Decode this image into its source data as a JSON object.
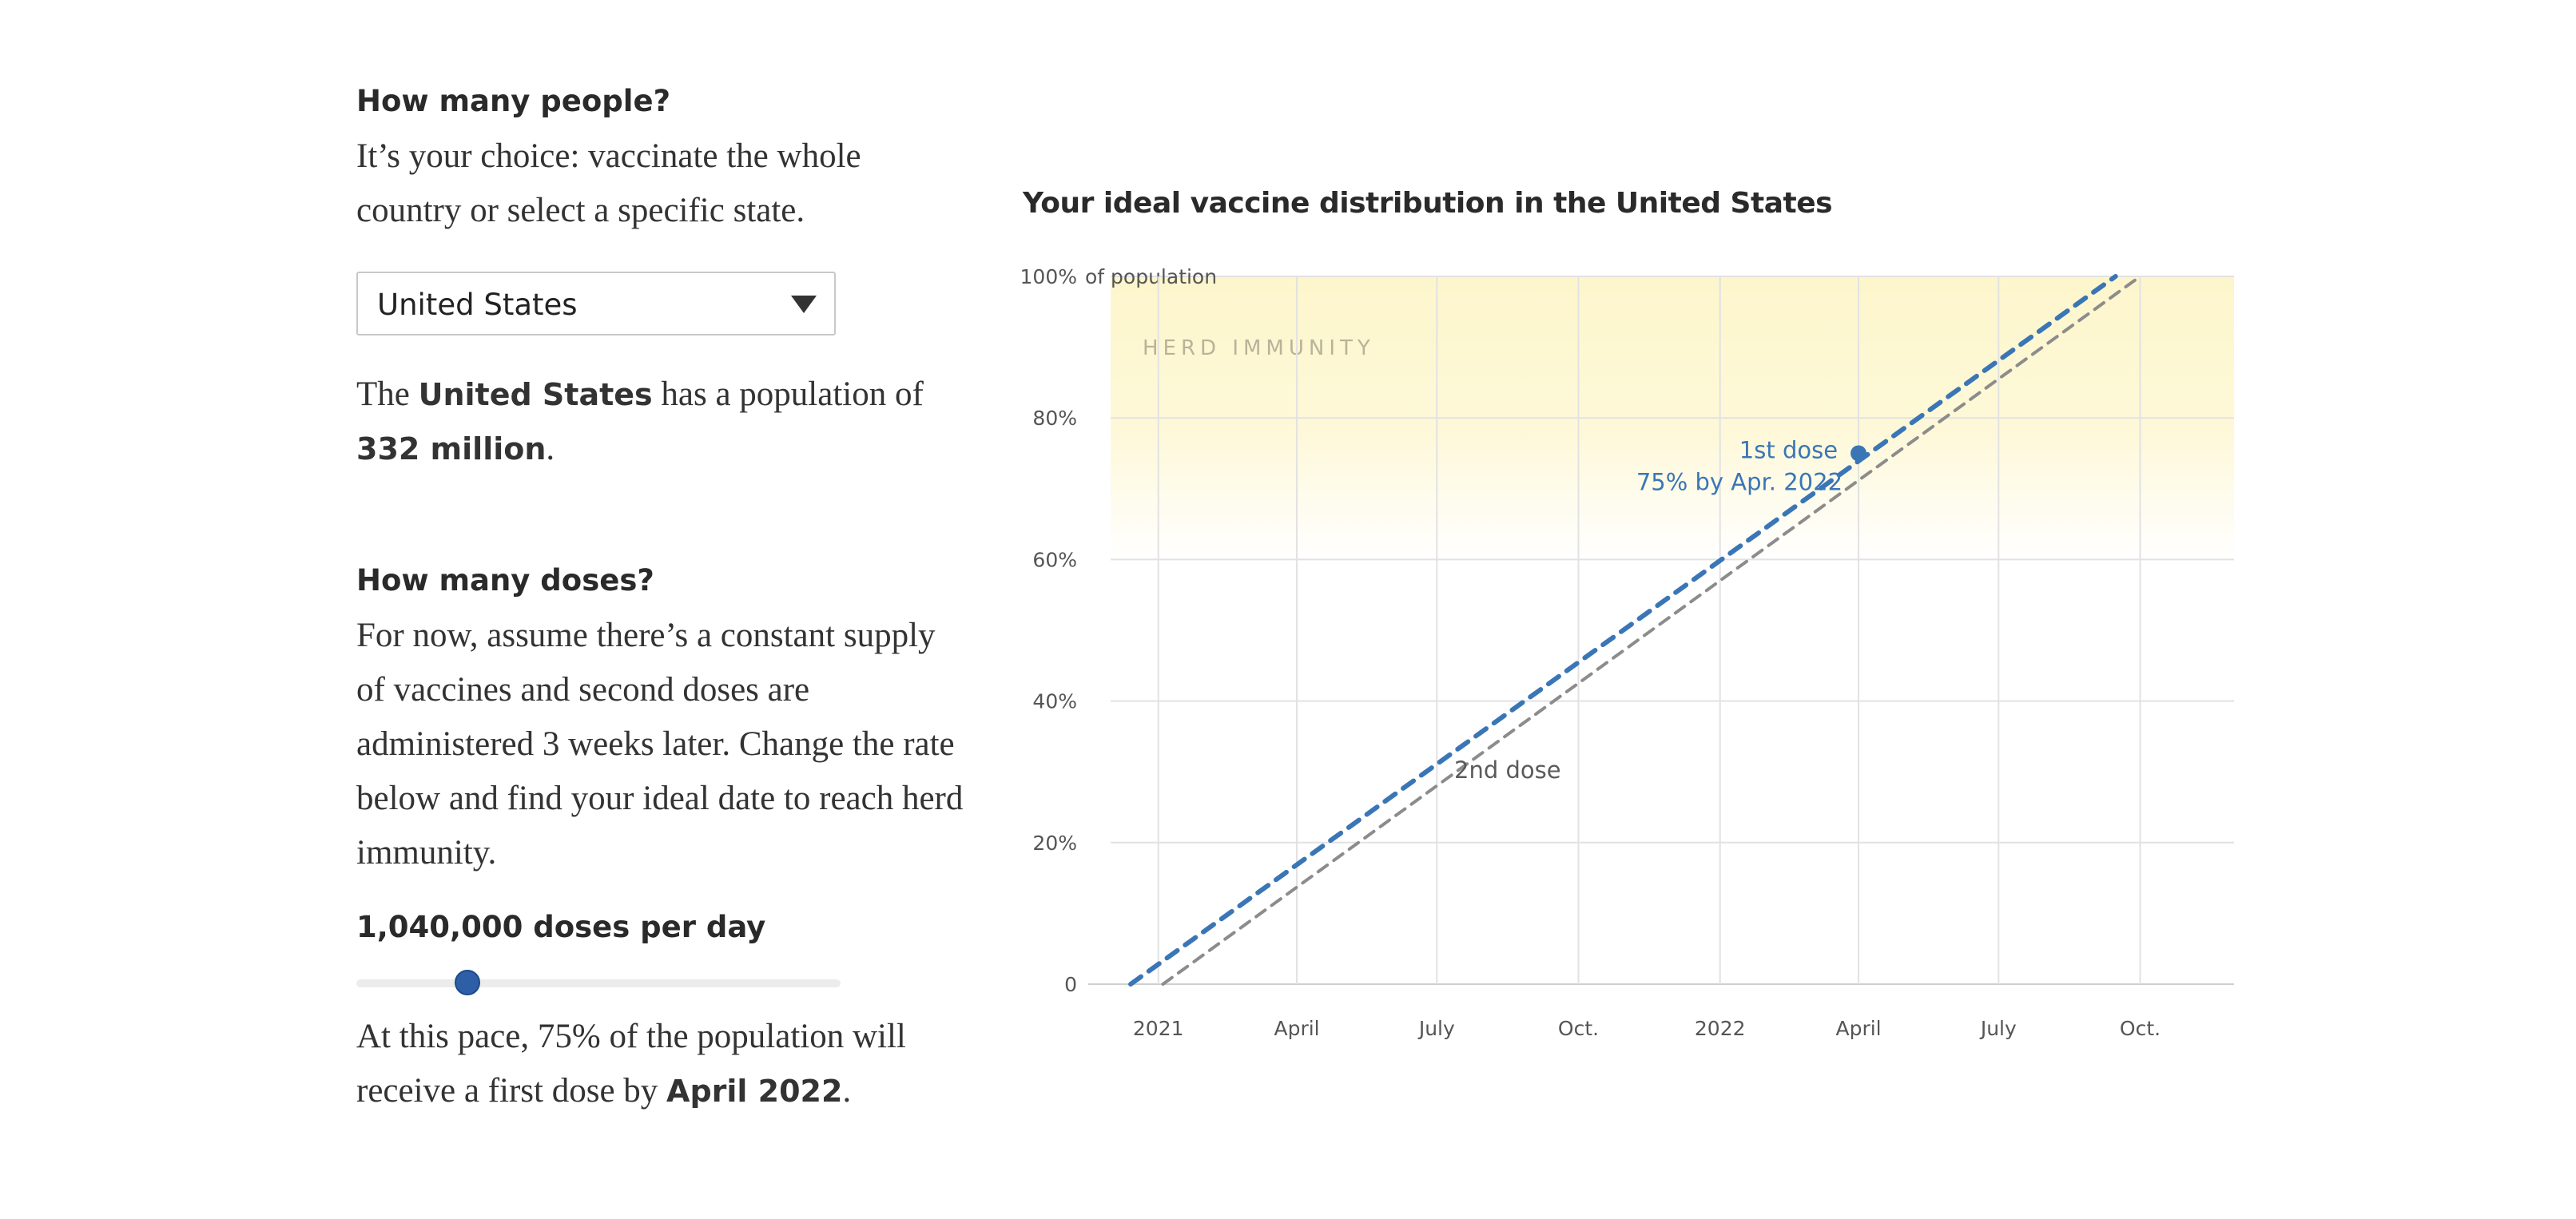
{
  "left": {
    "people_heading": "How many people?",
    "people_text": "It’s your choice: vaccinate the whole country or select a specific state.",
    "select_value": "United States",
    "pop_pre": "The",
    "pop_place": "United States",
    "pop_mid": "has a population of",
    "pop_value": "332 million",
    "pop_post": ".",
    "doses_heading": "How many doses?",
    "doses_text": "For now, assume there’s a constant supply of vaccines and second doses are administered 3 weeks later. Change the rate below and find your ideal date to reach herd immunity.",
    "rate_label": "1,040,000 doses per day",
    "slider_fraction": 0.23,
    "result_pre": "At this pace, 75% of the population will receive a first dose by",
    "result_date": "April 2022",
    "result_post": "."
  },
  "colors": {
    "first_dose": "#3a76b6",
    "second_dose": "#8c8c8c",
    "herd_band": "#fdf6cc",
    "grid": "#e2e2e2",
    "annotation": "#3a76b6"
  },
  "chart_data": {
    "type": "line",
    "title": "Your ideal vaccine distribution in the United States",
    "ylabel": "of population",
    "xlim": [
      "2020-12-01",
      "2022-12-01"
    ],
    "ylim": [
      0,
      100
    ],
    "y_ticks": [
      {
        "value": 0,
        "label": "0"
      },
      {
        "value": 20,
        "label": "20%"
      },
      {
        "value": 40,
        "label": "40%"
      },
      {
        "value": 60,
        "label": "60%"
      },
      {
        "value": 80,
        "label": "80%"
      },
      {
        "value": 100,
        "label": "100%"
      }
    ],
    "x_ticks": [
      {
        "date": "2021-01-01",
        "label": "2021"
      },
      {
        "date": "2021-04-01",
        "label": "April"
      },
      {
        "date": "2021-07-01",
        "label": "July"
      },
      {
        "date": "2021-10-01",
        "label": "Oct."
      },
      {
        "date": "2022-01-01",
        "label": "2022"
      },
      {
        "date": "2022-04-01",
        "label": "April"
      },
      {
        "date": "2022-07-01",
        "label": "July"
      },
      {
        "date": "2022-10-01",
        "label": "Oct."
      }
    ],
    "grid": true,
    "band": {
      "label": "HERD IMMUNITY",
      "from": 100,
      "to": 60
    },
    "series": [
      {
        "name": "1st dose",
        "style": "dashed",
        "points": [
          {
            "x": "2020-12-14",
            "y": 0
          },
          {
            "x": "2022-09-15",
            "y": 100
          }
        ]
      },
      {
        "name": "2nd dose",
        "style": "dashed",
        "points": [
          {
            "x": "2021-01-04",
            "y": 0
          },
          {
            "x": "2022-10-01",
            "y": 100
          }
        ]
      }
    ],
    "highlight": {
      "x": "2022-04-01",
      "y": 75,
      "label": "75% by Apr. 2022"
    }
  }
}
